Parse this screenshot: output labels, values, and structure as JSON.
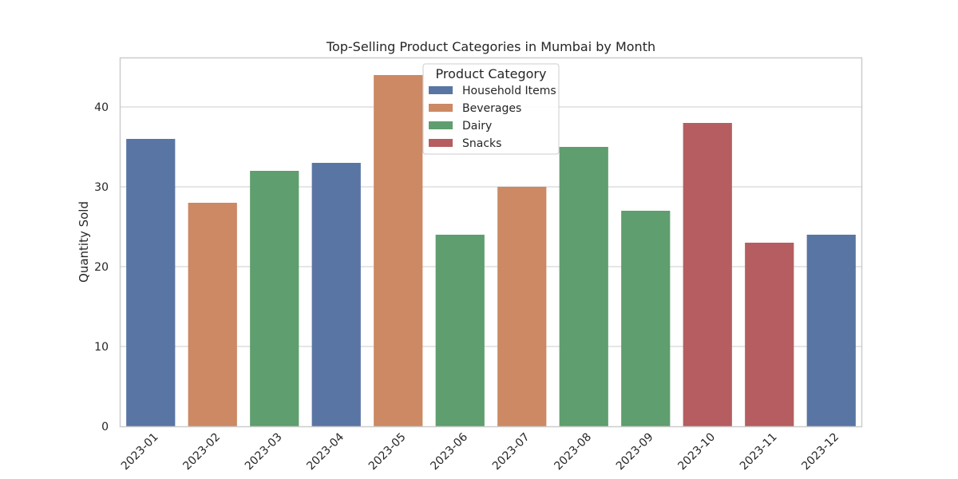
{
  "chart_data": {
    "type": "bar",
    "title": "Top-Selling Product Categories in Mumbai by Month",
    "xlabel": "",
    "ylabel": "Quantity Sold",
    "ylim": [
      0,
      46.2
    ],
    "yticks": [
      0,
      10,
      20,
      30,
      40
    ],
    "grid": true,
    "legend_placement": "top-center",
    "legend_title": "Product Category",
    "categories": [
      "2023-01",
      "2023-02",
      "2023-03",
      "2023-04",
      "2023-05",
      "2023-06",
      "2023-07",
      "2023-08",
      "2023-09",
      "2023-10",
      "2023-11",
      "2023-12"
    ],
    "values": [
      36,
      28,
      32,
      33,
      44,
      24,
      30,
      35,
      27,
      38,
      23,
      24
    ],
    "bar_categories": [
      "Household Items",
      "Beverages",
      "Dairy",
      "Household Items",
      "Beverages",
      "Dairy",
      "Beverages",
      "Dairy",
      "Dairy",
      "Snacks",
      "Snacks",
      "Household Items"
    ],
    "legend": [
      {
        "name": "Household Items",
        "color": "#5975a4"
      },
      {
        "name": "Beverages",
        "color": "#cc8963"
      },
      {
        "name": "Dairy",
        "color": "#5f9e6e"
      },
      {
        "name": "Snacks",
        "color": "#b55d60"
      }
    ]
  }
}
